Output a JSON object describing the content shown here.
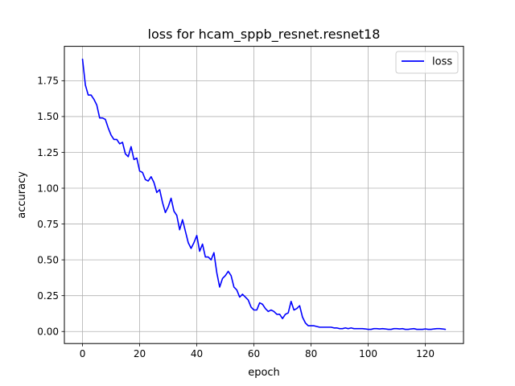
{
  "chart_data": {
    "type": "line",
    "title": "loss for hcam_sppb_resnet.resnet18",
    "xlabel": "epoch",
    "ylabel": "accuracy",
    "xlim": [
      -6.35,
      133.35
    ],
    "ylim": [
      -0.084,
      1.99
    ],
    "x_ticks": [
      0,
      20,
      40,
      60,
      80,
      100,
      120
    ],
    "y_ticks": [
      0.0,
      0.25,
      0.5,
      0.75,
      1.0,
      1.25,
      1.5,
      1.75
    ],
    "x_tick_labels": [
      "0",
      "20",
      "40",
      "60",
      "80",
      "100",
      "120"
    ],
    "y_tick_labels": [
      "0.00",
      "0.25",
      "0.50",
      "0.75",
      "1.00",
      "1.25",
      "1.50",
      "1.75"
    ],
    "grid": true,
    "legend_position": "top-right",
    "series": [
      {
        "name": "loss",
        "color": "#0000ff",
        "x": [
          0,
          1,
          2,
          3,
          4,
          5,
          6,
          7,
          8,
          9,
          10,
          11,
          12,
          13,
          14,
          15,
          16,
          17,
          18,
          19,
          20,
          21,
          22,
          23,
          24,
          25,
          26,
          27,
          28,
          29,
          30,
          31,
          32,
          33,
          34,
          35,
          36,
          37,
          38,
          39,
          40,
          41,
          42,
          43,
          44,
          45,
          46,
          47,
          48,
          49,
          50,
          51,
          52,
          53,
          54,
          55,
          56,
          57,
          58,
          59,
          60,
          61,
          62,
          63,
          64,
          65,
          66,
          67,
          68,
          69,
          70,
          71,
          72,
          73,
          74,
          75,
          76,
          77,
          78,
          79,
          80,
          81,
          82,
          83,
          84,
          85,
          86,
          87,
          88,
          89,
          90,
          91,
          92,
          93,
          94,
          95,
          96,
          97,
          98,
          99,
          100,
          101,
          102,
          103,
          104,
          105,
          106,
          107,
          108,
          109,
          110,
          111,
          112,
          113,
          114,
          115,
          116,
          117,
          118,
          119,
          120,
          121,
          122,
          123,
          124,
          125,
          126,
          127
        ],
        "values": [
          1.9,
          1.72,
          1.65,
          1.65,
          1.62,
          1.58,
          1.49,
          1.49,
          1.48,
          1.42,
          1.37,
          1.34,
          1.34,
          1.31,
          1.32,
          1.24,
          1.22,
          1.29,
          1.2,
          1.21,
          1.12,
          1.11,
          1.06,
          1.05,
          1.08,
          1.04,
          0.97,
          0.99,
          0.9,
          0.83,
          0.87,
          0.93,
          0.84,
          0.81,
          0.71,
          0.78,
          0.7,
          0.62,
          0.58,
          0.62,
          0.67,
          0.56,
          0.61,
          0.52,
          0.52,
          0.5,
          0.55,
          0.41,
          0.31,
          0.37,
          0.39,
          0.42,
          0.39,
          0.31,
          0.29,
          0.24,
          0.26,
          0.24,
          0.22,
          0.17,
          0.15,
          0.15,
          0.2,
          0.19,
          0.16,
          0.14,
          0.15,
          0.14,
          0.12,
          0.12,
          0.09,
          0.12,
          0.13,
          0.21,
          0.15,
          0.16,
          0.18,
          0.1,
          0.06,
          0.04,
          0.04,
          0.04,
          0.035,
          0.03,
          0.03,
          0.03,
          0.03,
          0.03,
          0.025,
          0.025,
          0.02,
          0.02,
          0.025,
          0.02,
          0.025,
          0.02,
          0.02,
          0.02,
          0.02,
          0.018,
          0.015,
          0.015,
          0.02,
          0.02,
          0.018,
          0.02,
          0.018,
          0.015,
          0.015,
          0.02,
          0.02,
          0.018,
          0.02,
          0.015,
          0.015,
          0.018,
          0.02,
          0.015,
          0.015,
          0.015,
          0.018,
          0.015,
          0.015,
          0.018,
          0.02,
          0.02,
          0.018,
          0.015
        ]
      }
    ]
  }
}
